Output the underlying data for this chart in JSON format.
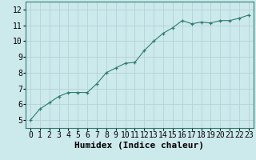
{
  "x": [
    0,
    1,
    2,
    3,
    4,
    5,
    6,
    7,
    8,
    9,
    10,
    11,
    12,
    13,
    14,
    15,
    16,
    17,
    18,
    19,
    20,
    21,
    22,
    23
  ],
  "y": [
    5.0,
    5.7,
    6.1,
    6.5,
    6.75,
    6.75,
    6.75,
    7.3,
    8.0,
    8.3,
    8.6,
    8.65,
    9.4,
    10.0,
    10.5,
    10.85,
    11.3,
    11.1,
    11.2,
    11.15,
    11.3,
    11.3,
    11.45,
    11.65
  ],
  "xlabel": "Humidex (Indice chaleur)",
  "ylim": [
    4.5,
    12.5
  ],
  "xlim": [
    -0.5,
    23.5
  ],
  "yticks": [
    5,
    6,
    7,
    8,
    9,
    10,
    11,
    12
  ],
  "xticks": [
    0,
    1,
    2,
    3,
    4,
    5,
    6,
    7,
    8,
    9,
    10,
    11,
    12,
    13,
    14,
    15,
    16,
    17,
    18,
    19,
    20,
    21,
    22,
    23
  ],
  "line_color": "#2e7d6e",
  "marker": "+",
  "background_color": "#cce9ec",
  "grid_color": "#b0cfd2",
  "tick_label_fontsize": 7,
  "xlabel_fontsize": 8
}
